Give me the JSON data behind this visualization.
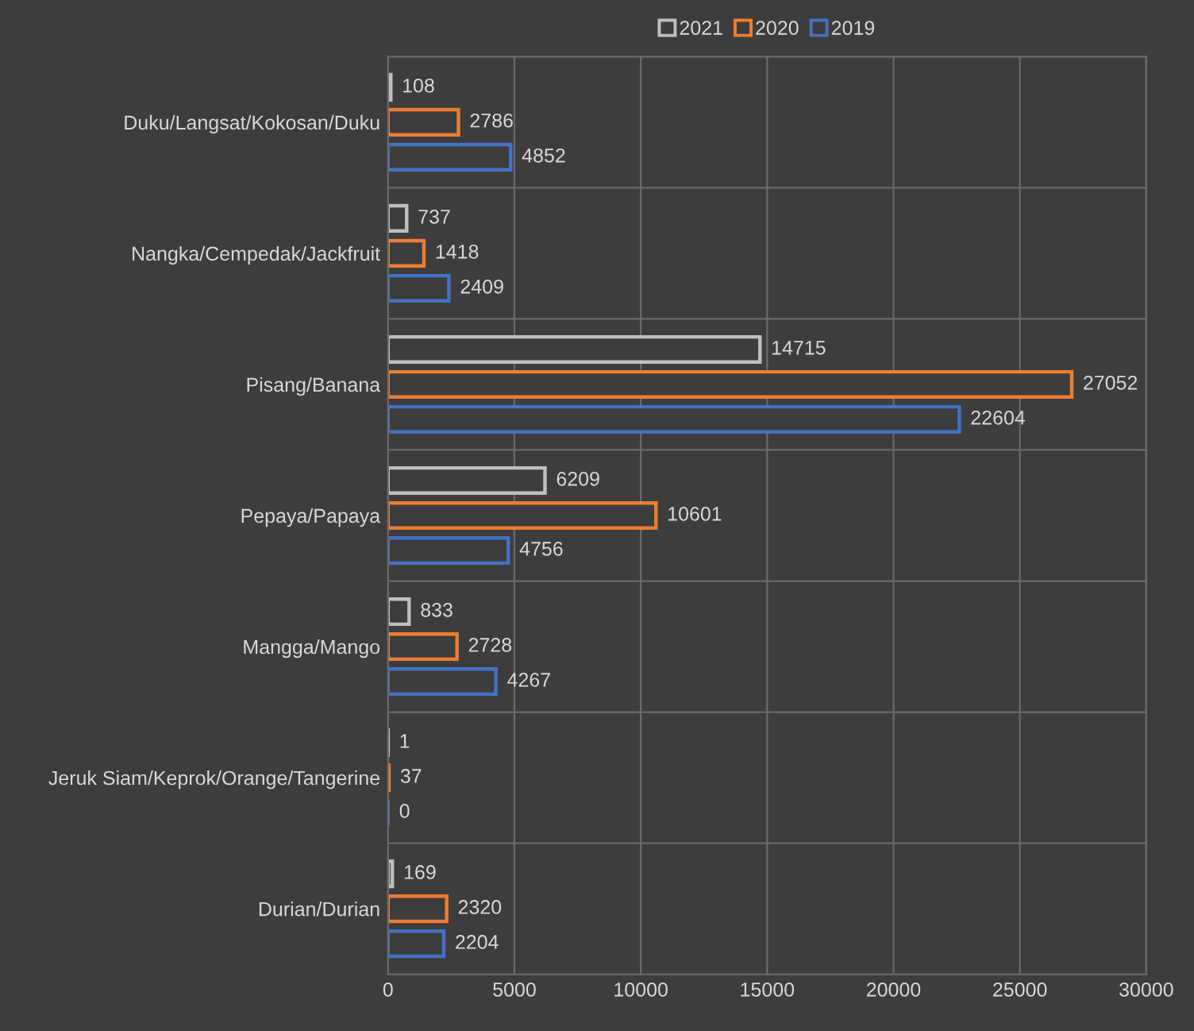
{
  "chart_data": {
    "type": "bar",
    "orientation": "horizontal",
    "categories": [
      "Duku/Langsat/Kokosan/Duku",
      "Nangka/Cempedak/Jackfruit",
      "Pisang/Banana",
      "Pepaya/Papaya",
      "Mangga/Mango",
      "Jeruk Siam/Keprok/Orange/Tangerine",
      "Durian/Durian"
    ],
    "series": [
      {
        "name": "2021",
        "color": "#bfbfbf",
        "values": [
          108,
          737,
          14715,
          6209,
          833,
          1,
          169
        ]
      },
      {
        "name": "2020",
        "color": "#ed7d31",
        "values": [
          2786,
          1418,
          27052,
          10601,
          2728,
          37,
          2320
        ]
      },
      {
        "name": "2019",
        "color": "#4472c4",
        "values": [
          4852,
          2409,
          22604,
          4756,
          4267,
          0,
          2204
        ]
      }
    ],
    "xlim": [
      0,
      30000
    ],
    "xticks": [
      0,
      5000,
      10000,
      15000,
      20000,
      25000,
      30000
    ],
    "grid": "x",
    "legend": "top",
    "data_labels": true
  }
}
